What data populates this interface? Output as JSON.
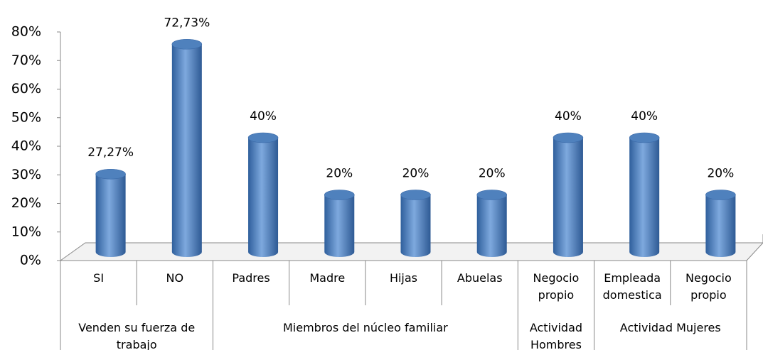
{
  "chart_data": {
    "type": "bar3d",
    "color": "#4f81bd",
    "ylim": [
      0,
      80
    ],
    "yticks": [
      {
        "value": 0,
        "label": "0%"
      },
      {
        "value": 10,
        "label": "10%"
      },
      {
        "value": 20,
        "label": "20%"
      },
      {
        "value": 30,
        "label": "30%"
      },
      {
        "value": 40,
        "label": "40%"
      },
      {
        "value": 50,
        "label": "50%"
      },
      {
        "value": 60,
        "label": "60%"
      },
      {
        "value": 70,
        "label": "70%"
      },
      {
        "value": 80,
        "label": "80%"
      }
    ],
    "groups": [
      {
        "name": "Venden su fuerza de trabajo",
        "categories": [
          "SI",
          "NO"
        ],
        "values": [
          27.27,
          72.73
        ],
        "value_labels": [
          "27,27%",
          "72,73%"
        ]
      },
      {
        "name": "Miembros del núcleo familiar",
        "categories": [
          "Padres",
          "Madre",
          "Hijas",
          "Abuelas"
        ],
        "values": [
          40,
          20,
          20,
          20
        ],
        "value_labels": [
          "40%",
          "20%",
          "20%",
          "20%"
        ]
      },
      {
        "name": "Actividad Hombres",
        "categories": [
          "Negocio propio"
        ],
        "values": [
          40
        ],
        "value_labels": [
          "40%"
        ]
      },
      {
        "name": "Actividad Mujeres",
        "categories": [
          "Empleada domestica",
          "Negocio propio"
        ],
        "values": [
          40,
          20
        ],
        "value_labels": [
          "40%",
          "20%"
        ]
      }
    ]
  }
}
